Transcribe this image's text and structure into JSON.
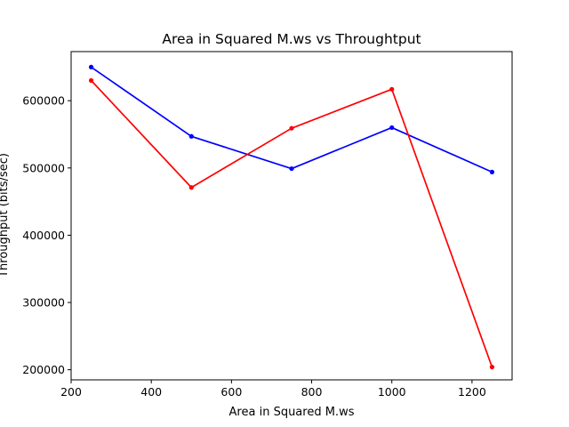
{
  "chart_data": {
    "type": "line",
    "title": "Area in Squared M.ws vs Throughtput",
    "xlabel": "Area in Squared M.ws",
    "ylabel": "Throughput (bits/sec)",
    "xlim": [
      200,
      1300
    ],
    "ylim": [
      185000,
      673000
    ],
    "xticks": [
      200,
      400,
      600,
      800,
      1000,
      1200
    ],
    "yticks": [
      200000,
      300000,
      400000,
      500000,
      600000
    ],
    "x": [
      250,
      500,
      750,
      1000,
      1250
    ],
    "grid": false,
    "series": [
      {
        "color": "#0000ff",
        "values": [
          650000,
          547000,
          499000,
          560000,
          494000
        ]
      },
      {
        "color": "#ff0000",
        "values": [
          630000,
          471000,
          559000,
          617000,
          204000
        ]
      }
    ]
  }
}
